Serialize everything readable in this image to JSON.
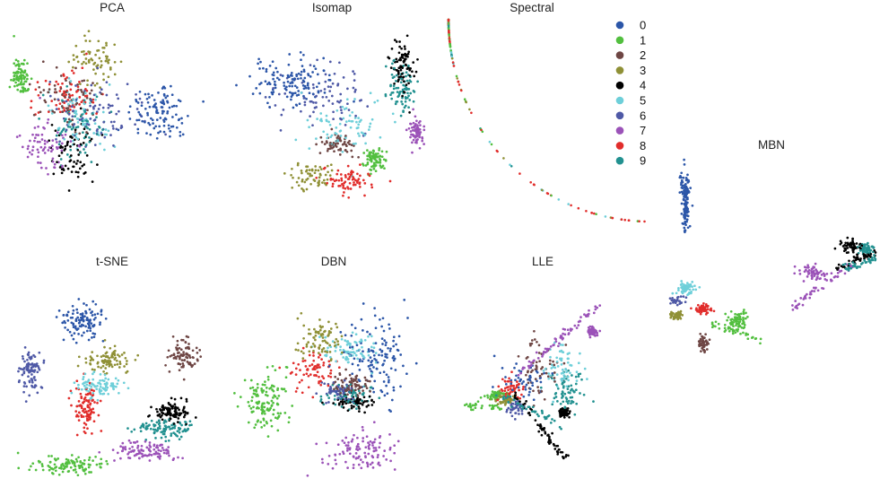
{
  "figure": {
    "colors": [
      "#2c56a8",
      "#52bf3f",
      "#6e4644",
      "#8f9036",
      "#000000",
      "#6ecfd9",
      "#4f59a6",
      "#9b52b8",
      "#e12d2b",
      "#229190"
    ]
  },
  "chart_data": [
    {
      "type": "scatter",
      "title": "PCA",
      "legend": {
        "entries": [
          "0",
          "1",
          "2",
          "3",
          "4",
          "5",
          "6",
          "7",
          "8",
          "9"
        ],
        "placement": "right"
      },
      "axes": "hidden",
      "clusters": [
        {
          "class": "0",
          "center": [
            0.75,
            0.48
          ],
          "spread": [
            0.14,
            0.14
          ],
          "count": 110
        },
        {
          "class": "1",
          "center": [
            0.08,
            0.3
          ],
          "spread": [
            0.04,
            0.09
          ],
          "count": 90
        },
        {
          "class": "2",
          "center": [
            0.3,
            0.4
          ],
          "spread": [
            0.13,
            0.14
          ],
          "count": 70
        },
        {
          "class": "3",
          "center": [
            0.45,
            0.22
          ],
          "spread": [
            0.1,
            0.12
          ],
          "count": 70
        },
        {
          "class": "4",
          "center": [
            0.32,
            0.68
          ],
          "spread": [
            0.1,
            0.14
          ],
          "count": 70
        },
        {
          "class": "5",
          "center": [
            0.38,
            0.5
          ],
          "spread": [
            0.13,
            0.14
          ],
          "count": 70
        },
        {
          "class": "6",
          "center": [
            0.45,
            0.48
          ],
          "spread": [
            0.2,
            0.15
          ],
          "count": 90
        },
        {
          "class": "7",
          "center": [
            0.2,
            0.66
          ],
          "spread": [
            0.1,
            0.12
          ],
          "count": 70
        },
        {
          "class": "8",
          "center": [
            0.3,
            0.38
          ],
          "spread": [
            0.13,
            0.12
          ],
          "count": 70
        },
        {
          "class": "9",
          "center": [
            0.36,
            0.55
          ],
          "spread": [
            0.15,
            0.15
          ],
          "count": 70
        }
      ]
    },
    {
      "type": "scatter",
      "title": "Isomap",
      "axes": "hidden",
      "clusters": [
        {
          "class": "0",
          "center": [
            0.3,
            0.33
          ],
          "spread": [
            0.18,
            0.12
          ],
          "count": 130
        },
        {
          "class": "1",
          "center": [
            0.71,
            0.72
          ],
          "spread": [
            0.05,
            0.06
          ],
          "count": 80
        },
        {
          "class": "2",
          "center": [
            0.52,
            0.64
          ],
          "spread": [
            0.08,
            0.05
          ],
          "count": 60
        },
        {
          "class": "3",
          "center": [
            0.4,
            0.8
          ],
          "spread": [
            0.12,
            0.06
          ],
          "count": 60
        },
        {
          "class": "4",
          "center": [
            0.85,
            0.22
          ],
          "spread": [
            0.05,
            0.12
          ],
          "count": 80
        },
        {
          "class": "5",
          "center": [
            0.55,
            0.55
          ],
          "spread": [
            0.18,
            0.12
          ],
          "count": 80
        },
        {
          "class": "6",
          "center": [
            0.45,
            0.4
          ],
          "spread": [
            0.22,
            0.15
          ],
          "count": 80
        },
        {
          "class": "7",
          "center": [
            0.92,
            0.58
          ],
          "spread": [
            0.04,
            0.07
          ],
          "count": 70
        },
        {
          "class": "8",
          "center": [
            0.58,
            0.82
          ],
          "spread": [
            0.1,
            0.06
          ],
          "count": 70
        },
        {
          "class": "9",
          "center": [
            0.84,
            0.35
          ],
          "spread": [
            0.06,
            0.12
          ],
          "count": 80
        }
      ]
    },
    {
      "type": "scatter",
      "title": "Spectral",
      "axes": "hidden",
      "shape": "points along a quarter-circle arc",
      "dominant_classes": [
        "8",
        "3",
        "1"
      ]
    },
    {
      "type": "scatter",
      "title": "MBN",
      "axes": "hidden",
      "clusters": [
        {
          "class": "0",
          "center": [
            0.12,
            0.2
          ],
          "spread": [
            0.02,
            0.12
          ],
          "count": 80
        },
        {
          "class": "1",
          "center": [
            0.36,
            0.78
          ],
          "spread": [
            0.04,
            0.04
          ],
          "count": 70
        },
        {
          "class": "2",
          "center": [
            0.2,
            0.88
          ],
          "spread": [
            0.02,
            0.04
          ],
          "count": 50
        },
        {
          "class": "3",
          "center": [
            0.08,
            0.75
          ],
          "spread": [
            0.03,
            0.02
          ],
          "count": 50
        },
        {
          "class": "4",
          "center": [
            0.87,
            0.43
          ],
          "spread": [
            0.04,
            0.03
          ],
          "count": 60
        },
        {
          "class": "5",
          "center": [
            0.12,
            0.62
          ],
          "spread": [
            0.05,
            0.03
          ],
          "count": 60
        },
        {
          "class": "6",
          "center": [
            0.08,
            0.68
          ],
          "spread": [
            0.03,
            0.02
          ],
          "count": 30
        },
        {
          "class": "7",
          "center": [
            0.7,
            0.55
          ],
          "spread": [
            0.05,
            0.03
          ],
          "count": 60
        },
        {
          "class": "8",
          "center": [
            0.2,
            0.72
          ],
          "spread": [
            0.04,
            0.02
          ],
          "count": 60
        },
        {
          "class": "9",
          "center": [
            0.94,
            0.44
          ],
          "spread": [
            0.03,
            0.02
          ],
          "count": 60
        }
      ]
    },
    {
      "type": "scatter",
      "title": "t-SNE",
      "axes": "hidden",
      "clusters": [
        {
          "class": "0",
          "center": [
            0.36,
            0.22
          ],
          "spread": [
            0.09,
            0.08
          ],
          "count": 110
        },
        {
          "class": "1",
          "center": [
            0.3,
            0.89
          ],
          "spread": [
            0.14,
            0.04
          ],
          "count": 110
        },
        {
          "class": "2",
          "center": [
            0.84,
            0.38
          ],
          "spread": [
            0.06,
            0.07
          ],
          "count": 90
        },
        {
          "class": "3",
          "center": [
            0.48,
            0.4
          ],
          "spread": [
            0.1,
            0.05
          ],
          "count": 90
        },
        {
          "class": "4",
          "center": [
            0.78,
            0.64
          ],
          "spread": [
            0.09,
            0.05
          ],
          "count": 100
        },
        {
          "class": "5",
          "center": [
            0.43,
            0.52
          ],
          "spread": [
            0.1,
            0.05
          ],
          "count": 90
        },
        {
          "class": "6",
          "center": [
            0.12,
            0.45
          ],
          "spread": [
            0.05,
            0.09
          ],
          "count": 90
        },
        {
          "class": "7",
          "center": [
            0.65,
            0.83
          ],
          "spread": [
            0.13,
            0.04
          ],
          "count": 100
        },
        {
          "class": "8",
          "center": [
            0.38,
            0.62
          ],
          "spread": [
            0.05,
            0.09
          ],
          "count": 100
        },
        {
          "class": "9",
          "center": [
            0.75,
            0.72
          ],
          "spread": [
            0.12,
            0.04
          ],
          "count": 100
        }
      ]
    },
    {
      "type": "scatter",
      "title": "DBN",
      "axes": "hidden",
      "clusters": [
        {
          "class": "0",
          "center": [
            0.68,
            0.4
          ],
          "spread": [
            0.14,
            0.17
          ],
          "count": 130
        },
        {
          "class": "1",
          "center": [
            0.16,
            0.6
          ],
          "spread": [
            0.09,
            0.11
          ],
          "count": 130
        },
        {
          "class": "2",
          "center": [
            0.55,
            0.52
          ],
          "spread": [
            0.08,
            0.05
          ],
          "count": 80
        },
        {
          "class": "3",
          "center": [
            0.42,
            0.3
          ],
          "spread": [
            0.1,
            0.09
          ],
          "count": 80
        },
        {
          "class": "4",
          "center": [
            0.56,
            0.6
          ],
          "spread": [
            0.08,
            0.03
          ],
          "count": 60
        },
        {
          "class": "5",
          "center": [
            0.55,
            0.35
          ],
          "spread": [
            0.11,
            0.08
          ],
          "count": 80
        },
        {
          "class": "6",
          "center": [
            0.5,
            0.55
          ],
          "spread": [
            0.06,
            0.04
          ],
          "count": 60
        },
        {
          "class": "7",
          "center": [
            0.62,
            0.82
          ],
          "spread": [
            0.15,
            0.1
          ],
          "count": 110
        },
        {
          "class": "8",
          "center": [
            0.38,
            0.45
          ],
          "spread": [
            0.1,
            0.1
          ],
          "count": 70
        },
        {
          "class": "9",
          "center": [
            0.55,
            0.57
          ],
          "spread": [
            0.1,
            0.05
          ],
          "count": 70
        }
      ]
    },
    {
      "type": "scatter",
      "title": "LLE",
      "axes": "hidden",
      "clusters": [
        {
          "class": "0",
          "center": [
            0.35,
            0.55
          ],
          "spread": [
            0.1,
            0.08
          ],
          "count": 50
        },
        {
          "class": "1",
          "center": [
            0.2,
            0.63
          ],
          "spread": [
            0.05,
            0.02
          ],
          "count": 40
        },
        {
          "class": "2",
          "center": [
            0.42,
            0.5
          ],
          "spread": [
            0.1,
            0.15
          ],
          "count": 60
        },
        {
          "class": "3",
          "center": [
            0.25,
            0.65
          ],
          "spread": [
            0.05,
            0.03
          ],
          "count": 50
        },
        {
          "class": "4",
          "center": [
            0.55,
            0.72
          ],
          "spread": [
            0.02,
            0.02
          ],
          "count": 70
        },
        {
          "class": "5",
          "center": [
            0.55,
            0.5
          ],
          "spread": [
            0.08,
            0.12
          ],
          "count": 60
        },
        {
          "class": "6",
          "center": [
            0.3,
            0.7
          ],
          "spread": [
            0.05,
            0.04
          ],
          "count": 40
        },
        {
          "class": "7",
          "center": [
            0.7,
            0.3
          ],
          "spread": [
            0.02,
            0.02
          ],
          "count": 80
        },
        {
          "class": "8",
          "center": [
            0.28,
            0.6
          ],
          "spread": [
            0.06,
            0.05
          ],
          "count": 50
        },
        {
          "class": "9",
          "center": [
            0.58,
            0.62
          ],
          "spread": [
            0.08,
            0.12
          ],
          "count": 70
        }
      ]
    }
  ]
}
